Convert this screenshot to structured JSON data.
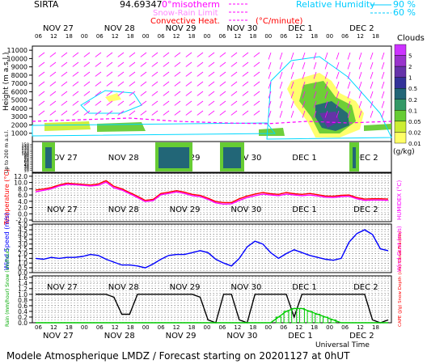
{
  "header": {
    "site": "SIRTA",
    "lon_lat": "94.69347",
    "legend": {
      "isotherm_label": "0°misotherm",
      "snow_rain_label": "Snow-Rain Limit",
      "convective_label": "Convective Heat.",
      "convective_unit": "(°C/minute)",
      "rh_label": "Relative Humidity",
      "rh_90": "90 %",
      "rh_60": "60 %"
    }
  },
  "colors": {
    "magenta": "#ff00ff",
    "cyan": "#00d8ff",
    "red": "#ff0000",
    "blue": "#0000ff",
    "green": "#00cc00",
    "black": "#000000"
  },
  "days": [
    "NOV 27",
    "NOV 28",
    "NOV 29",
    "NOV 30",
    "DEC 1",
    "DEC 2"
  ],
  "hours_row": [
    "06",
    "12",
    "18",
    "00",
    "06",
    "12",
    "18",
    "00",
    "06",
    "12",
    "18",
    "00",
    "06",
    "12",
    "18",
    "00",
    "06",
    "12",
    "18",
    "00",
    "06",
    "12",
    "18"
  ],
  "footer": {
    "universal_time": "Universal Time",
    "title": "Modele Atmospherique LMDZ / Forecast starting on 20201127 at 0hUT"
  },
  "chart_data": [
    {
      "type": "heatmap",
      "title": "",
      "ylabel": "Height (m a.s.l.)",
      "yticks": [
        1000,
        2000,
        3000,
        4000,
        5000,
        6000,
        7000,
        8000,
        9000,
        10000,
        11000
      ],
      "ylim": [
        0,
        11500
      ],
      "colorbar": {
        "title": "Clouds",
        "unit": "(g/kg)",
        "labels": [
          "0.01",
          "0.02",
          "0.05",
          "0.1",
          "0.2",
          "0.5",
          "1",
          "2",
          "5"
        ],
        "colors": [
          "#ffff66",
          "#ccee33",
          "#66cc33",
          "#339966",
          "#226677",
          "#333399",
          "#6633aa",
          "#9933cc",
          "#cc33ff"
        ]
      },
      "wind_arrows": true
    },
    {
      "type": "heatmap",
      "ylabel": "Up to 200 m a.s.l.",
      "yticks": [
        10,
        20,
        30,
        40,
        50,
        60,
        70,
        80,
        90,
        100,
        110,
        120,
        130,
        140,
        150
      ],
      "ylim": [
        0,
        160
      ]
    },
    {
      "type": "line",
      "ylabel": "Temperature (°C)",
      "ylabel2": "HUMIDEX (°C)",
      "yticks": [
        -2.0,
        0.0,
        2.0,
        4.0,
        6.0,
        8.0,
        10.0,
        12.0
      ],
      "ylim": [
        -2.5,
        13
      ],
      "series": [
        {
          "name": "Temperature",
          "color": "#ff0000",
          "values": [
            7.6,
            7.9,
            8.4,
            9.2,
            9.8,
            9.6,
            9.4,
            9.2,
            9.5,
            10.6,
            8.8,
            8.0,
            6.8,
            5.6,
            4.3,
            4.6,
            6.5,
            6.9,
            7.4,
            6.9,
            6.2,
            5.9,
            5.0,
            3.9,
            3.6,
            3.6,
            4.8,
            5.7,
            6.3,
            6.8,
            6.4,
            6.2,
            6.8,
            6.4,
            6.2,
            6.5,
            6.1,
            5.7,
            5.6,
            5.9,
            6.0,
            5.2,
            4.7,
            4.8,
            4.8,
            4.7
          ]
        },
        {
          "name": "Humidex",
          "color": "#ff00ff",
          "values": [
            7.0,
            7.5,
            8.0,
            8.9,
            9.4,
            9.3,
            9.1,
            8.9,
            9.1,
            10.1,
            8.3,
            7.6,
            6.4,
            5.2,
            3.9,
            4.2,
            6.1,
            6.5,
            7.0,
            6.5,
            5.8,
            5.5,
            4.6,
            3.5,
            3.1,
            3.2,
            4.3,
            5.2,
            5.8,
            6.3,
            6.0,
            5.8,
            6.3,
            6.0,
            5.8,
            6.0,
            5.7,
            5.3,
            5.2,
            5.5,
            5.6,
            4.8,
            4.3,
            4.4,
            4.4,
            4.3
          ]
        }
      ]
    },
    {
      "type": "line",
      "ylabel": "Wind Speed (m/s)",
      "ylabel2": "Wind Gust (m/s)",
      "yticks": [
        0.0,
        0.5,
        1.0,
        1.5,
        2.0,
        2.5,
        3.0,
        3.5,
        4.0,
        4.5,
        5.0
      ],
      "ylim": [
        0,
        5.1
      ],
      "series": [
        {
          "name": "Wind Speed",
          "color": "#0000ff",
          "values": [
            1.5,
            1.4,
            1.6,
            1.5,
            1.6,
            1.6,
            1.7,
            1.9,
            1.8,
            1.4,
            1.1,
            0.8,
            0.8,
            0.7,
            0.5,
            0.9,
            1.4,
            1.8,
            1.9,
            1.9,
            2.1,
            2.3,
            2.1,
            1.4,
            1.0,
            0.7,
            1.5,
            2.7,
            3.3,
            3.0,
            2.1,
            1.5,
            2.0,
            2.4,
            2.1,
            1.8,
            1.6,
            1.4,
            1.3,
            1.5,
            3.2,
            4.1,
            4.5,
            4.0,
            2.5,
            2.3
          ]
        }
      ]
    },
    {
      "type": "line",
      "ylabel": "Rain (mm/hour) Snow (cm/hour)",
      "ylabel2": "CAPE (J/g) Snow Depth (cm) Cloud Fraction",
      "yticks": [
        0.0,
        0.2,
        0.4,
        0.6,
        0.8,
        1.0,
        1.2,
        1.4,
        1.6
      ],
      "ylim": [
        0,
        1.65
      ],
      "series": [
        {
          "name": "Cloud Fraction",
          "color": "#000000",
          "values": [
            1.0,
            1.0,
            1.0,
            1.0,
            1.0,
            1.0,
            1.0,
            1.0,
            1.0,
            1.0,
            0.9,
            0.3,
            0.3,
            1.0,
            1.0,
            1.0,
            1.0,
            1.0,
            1.0,
            1.0,
            1.0,
            0.9,
            0.1,
            0.0,
            1.0,
            1.0,
            0.1,
            0.0,
            1.0,
            1.0,
            1.0,
            1.0,
            1.0,
            0.2,
            1.0,
            1.0,
            1.0,
            1.0,
            1.0,
            1.0,
            1.0,
            1.0,
            1.0,
            0.1,
            0.0,
            0.1
          ]
        },
        {
          "name": "Rain",
          "color": "#00cc00",
          "values": [
            0,
            0,
            0,
            0,
            0,
            0,
            0,
            0,
            0,
            0,
            0,
            0,
            0,
            0,
            0,
            0,
            0,
            0,
            0,
            0,
            0,
            0,
            0,
            0,
            0,
            0,
            0,
            0,
            0,
            0,
            0,
            0.2,
            0.4,
            0.5,
            0.5,
            0.4,
            0.3,
            0.2,
            0.1,
            0,
            0,
            0,
            0,
            0,
            0,
            0
          ]
        }
      ]
    }
  ]
}
